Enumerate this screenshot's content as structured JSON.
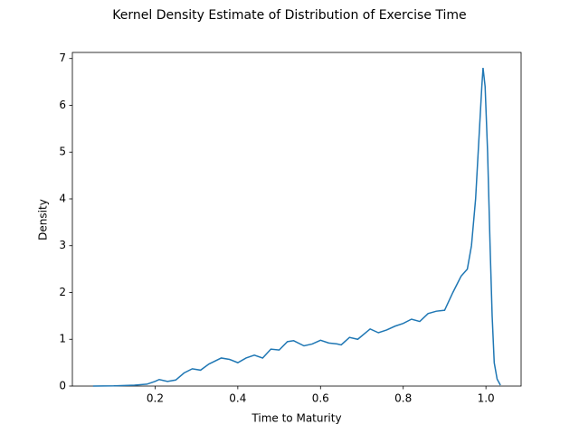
{
  "chart_data": {
    "type": "line",
    "title": "Kernel Density Estimate of Distribution of Exercise Time",
    "xlabel": "Time to Maturity",
    "ylabel": "Density",
    "x": [
      0.05,
      0.1,
      0.15,
      0.18,
      0.2,
      0.21,
      0.23,
      0.25,
      0.27,
      0.29,
      0.31,
      0.33,
      0.36,
      0.38,
      0.4,
      0.42,
      0.44,
      0.46,
      0.48,
      0.5,
      0.52,
      0.535,
      0.56,
      0.58,
      0.6,
      0.62,
      0.64,
      0.65,
      0.67,
      0.69,
      0.72,
      0.74,
      0.76,
      0.78,
      0.8,
      0.82,
      0.84,
      0.86,
      0.88,
      0.9,
      0.92,
      0.94,
      0.955,
      0.965,
      0.975,
      0.985,
      0.99,
      0.993,
      0.998,
      1.004,
      1.01,
      1.015,
      1.02,
      1.027,
      1.035
    ],
    "series": [
      {
        "name": "Density",
        "color": "#1f77b4",
        "values": [
          0,
          0.005,
          0.02,
          0.04,
          0.1,
          0.14,
          0.1,
          0.13,
          0.28,
          0.37,
          0.34,
          0.47,
          0.6,
          0.57,
          0.5,
          0.6,
          0.66,
          0.6,
          0.79,
          0.77,
          0.95,
          0.97,
          0.86,
          0.9,
          0.98,
          0.92,
          0.9,
          0.88,
          1.04,
          1.0,
          1.22,
          1.14,
          1.2,
          1.28,
          1.34,
          1.43,
          1.38,
          1.55,
          1.6,
          1.62,
          2.0,
          2.35,
          2.5,
          3.0,
          4.0,
          5.6,
          6.4,
          6.8,
          6.4,
          5.0,
          3.0,
          1.5,
          0.5,
          0.15,
          0.02
        ]
      }
    ],
    "xlim": [
      0.0,
      1.085
    ],
    "ylim": [
      0,
      7.13
    ],
    "xticks": [
      0.2,
      0.4,
      0.6,
      0.8,
      {
        "value": 1.0,
        "label": "1.0"
      }
    ],
    "yticks": [
      0,
      1,
      2,
      3,
      4,
      5,
      6,
      7
    ]
  }
}
